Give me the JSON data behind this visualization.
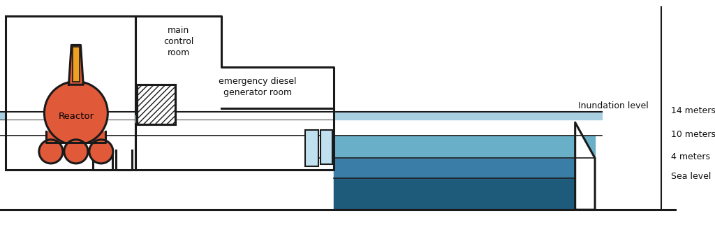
{
  "bg_color": "#ffffff",
  "outline_color": "#1a1a1a",
  "reactor_body_color": "#e05a3a",
  "reactor_rod_color": "#f0a020",
  "water_inundation_color": "#a8cfe0",
  "water_10m_color": "#6aafc8",
  "water_4m_color": "#3a7ea8",
  "water_sea_color": "#1e5a7a",
  "generator_window_color": "#c0e0f0",
  "text_color": "#111111",
  "label_reactor": "Reactor",
  "label_control_room": "main\ncontrol\nroom",
  "label_generator": "emergency diesel\ngenerator room",
  "label_inundation": "Inundation level",
  "label_14m": "14 meters",
  "label_10m": "10 meters",
  "label_4m": "4 meters",
  "label_sea": "Sea level",
  "lw": 2.2
}
